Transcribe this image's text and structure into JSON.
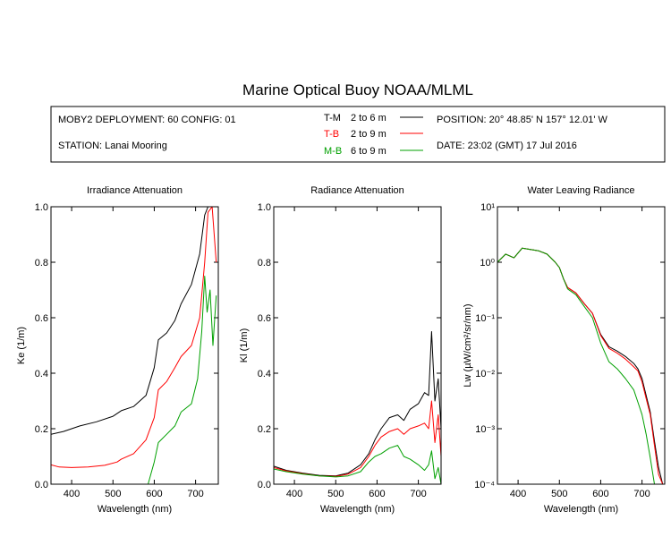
{
  "title": "Marine Optical Buoy NOAA/MLML",
  "info": {
    "deployment": "MOBY2 DEPLOYMENT: 60 CONFIG: 01",
    "station": "STATION: Lanai Mooring",
    "position": "POSITION: 20° 48.85' N   157° 12.01' W",
    "date": "DATE: 23:02 (GMT) 17 Jul 2016"
  },
  "legend": [
    {
      "code": "T-M",
      "range": "2 to 6  m",
      "color": "#000000"
    },
    {
      "code": "T-B",
      "range": "2 to 9  m",
      "color": "#ff0000"
    },
    {
      "code": "M-B",
      "range": "6 to 9  m",
      "color": "#00a000"
    }
  ],
  "chart_data": [
    {
      "type": "line",
      "title": "Irradiance Attenuation",
      "xlabel": "Wavelength (nm)",
      "ylabel": "Ke  (1/m)",
      "xlim": [
        350,
        755
      ],
      "ylim": [
        0,
        1
      ],
      "xticks": [
        "400",
        "500",
        "600",
        "700"
      ],
      "yticks": [
        "0.0",
        "0.2",
        "0.4",
        "0.6",
        "0.8",
        "1.0"
      ],
      "series": [
        {
          "name": "T-M",
          "color": "#000000",
          "points": [
            [
              350,
              0.18
            ],
            [
              380,
              0.19
            ],
            [
              420,
              0.21
            ],
            [
              460,
              0.225
            ],
            [
              500,
              0.245
            ],
            [
              520,
              0.265
            ],
            [
              550,
              0.28
            ],
            [
              580,
              0.32
            ],
            [
              600,
              0.42
            ],
            [
              610,
              0.52
            ],
            [
              630,
              0.545
            ],
            [
              650,
              0.59
            ],
            [
              665,
              0.65
            ],
            [
              690,
              0.72
            ],
            [
              710,
              0.83
            ],
            [
              722,
              0.97
            ],
            [
              730,
              1.0
            ]
          ]
        },
        {
          "name": "T-B",
          "color": "#ff0000",
          "points": [
            [
              350,
              0.07
            ],
            [
              370,
              0.062
            ],
            [
              400,
              0.06
            ],
            [
              440,
              0.062
            ],
            [
              480,
              0.068
            ],
            [
              510,
              0.08
            ],
            [
              520,
              0.09
            ],
            [
              550,
              0.11
            ],
            [
              580,
              0.16
            ],
            [
              600,
              0.24
            ],
            [
              610,
              0.34
            ],
            [
              630,
              0.37
            ],
            [
              650,
              0.42
            ],
            [
              665,
              0.46
            ],
            [
              690,
              0.5
            ],
            [
              710,
              0.6
            ],
            [
              722,
              0.8
            ],
            [
              730,
              0.98
            ],
            [
              740,
              1.0
            ],
            [
              750,
              0.8
            ]
          ]
        },
        {
          "name": "M-B",
          "color": "#00a000",
          "points": [
            [
              585,
              0.0
            ],
            [
              600,
              0.08
            ],
            [
              610,
              0.15
            ],
            [
              630,
              0.18
            ],
            [
              650,
              0.21
            ],
            [
              665,
              0.26
            ],
            [
              690,
              0.29
            ],
            [
              705,
              0.38
            ],
            [
              715,
              0.55
            ],
            [
              722,
              0.75
            ],
            [
              728,
              0.62
            ],
            [
              735,
              0.7
            ],
            [
              742,
              0.5
            ],
            [
              750,
              0.68
            ]
          ]
        }
      ]
    },
    {
      "type": "line",
      "title": "Radiance Attenuation",
      "xlabel": "Wavelength (nm)",
      "ylabel": "Kl  (1/m)",
      "xlim": [
        350,
        755
      ],
      "ylim": [
        0,
        1
      ],
      "xticks": [
        "400",
        "500",
        "600",
        "700"
      ],
      "yticks": [
        "0.0",
        "0.2",
        "0.4",
        "0.6",
        "0.8",
        "1.0"
      ],
      "series": [
        {
          "name": "T-M",
          "color": "#000000",
          "points": [
            [
              350,
              0.065
            ],
            [
              380,
              0.05
            ],
            [
              420,
              0.04
            ],
            [
              460,
              0.032
            ],
            [
              500,
              0.03
            ],
            [
              530,
              0.04
            ],
            [
              560,
              0.07
            ],
            [
              580,
              0.11
            ],
            [
              595,
              0.16
            ],
            [
              610,
              0.2
            ],
            [
              630,
              0.24
            ],
            [
              650,
              0.25
            ],
            [
              665,
              0.23
            ],
            [
              680,
              0.27
            ],
            [
              700,
              0.29
            ],
            [
              715,
              0.33
            ],
            [
              725,
              0.32
            ],
            [
              732,
              0.55
            ],
            [
              740,
              0.3
            ],
            [
              748,
              0.38
            ],
            [
              755,
              0.2
            ]
          ]
        },
        {
          "name": "T-B",
          "color": "#ff0000",
          "points": [
            [
              350,
              0.06
            ],
            [
              380,
              0.048
            ],
            [
              420,
              0.038
            ],
            [
              460,
              0.03
            ],
            [
              500,
              0.028
            ],
            [
              530,
              0.036
            ],
            [
              560,
              0.06
            ],
            [
              580,
              0.1
            ],
            [
              595,
              0.14
            ],
            [
              610,
              0.17
            ],
            [
              630,
              0.19
            ],
            [
              650,
              0.2
            ],
            [
              665,
              0.18
            ],
            [
              680,
              0.2
            ],
            [
              700,
              0.21
            ],
            [
              715,
              0.22
            ],
            [
              725,
              0.2
            ],
            [
              732,
              0.3
            ],
            [
              740,
              0.15
            ],
            [
              748,
              0.25
            ],
            [
              755,
              0.1
            ]
          ]
        },
        {
          "name": "M-B",
          "color": "#00a000",
          "points": [
            [
              350,
              0.055
            ],
            [
              380,
              0.045
            ],
            [
              420,
              0.036
            ],
            [
              460,
              0.03
            ],
            [
              500,
              0.026
            ],
            [
              530,
              0.03
            ],
            [
              560,
              0.045
            ],
            [
              580,
              0.08
            ],
            [
              595,
              0.1
            ],
            [
              610,
              0.11
            ],
            [
              630,
              0.13
            ],
            [
              650,
              0.14
            ],
            [
              665,
              0.1
            ],
            [
              680,
              0.09
            ],
            [
              700,
              0.07
            ],
            [
              715,
              0.05
            ],
            [
              725,
              0.07
            ],
            [
              732,
              0.12
            ],
            [
              740,
              0.02
            ],
            [
              748,
              0.06
            ],
            [
              755,
              0.0
            ]
          ]
        }
      ]
    },
    {
      "type": "line",
      "title": "Water Leaving Radiance",
      "xlabel": "Wavelength (nm)",
      "ylabel": "Lw  (µW/cm²/sr/nm)",
      "yscale": "log",
      "xlim": [
        350,
        755
      ],
      "ylim": [
        0.0001,
        10
      ],
      "xticks": [
        "400",
        "500",
        "600",
        "700"
      ],
      "yticks": [
        "10⁻⁴",
        "10⁻³",
        "10⁻²",
        "10⁻¹",
        "10⁰",
        "10¹"
      ],
      "series": [
        {
          "name": "T-M",
          "color": "#000000",
          "points": [
            [
              350,
              1.0
            ],
            [
              370,
              1.4
            ],
            [
              390,
              1.2
            ],
            [
              410,
              1.8
            ],
            [
              430,
              1.7
            ],
            [
              450,
              1.6
            ],
            [
              470,
              1.4
            ],
            [
              490,
              1.0
            ],
            [
              500,
              0.8
            ],
            [
              510,
              0.5
            ],
            [
              520,
              0.35
            ],
            [
              540,
              0.28
            ],
            [
              560,
              0.18
            ],
            [
              580,
              0.12
            ],
            [
              600,
              0.05
            ],
            [
              620,
              0.03
            ],
            [
              640,
              0.025
            ],
            [
              660,
              0.02
            ],
            [
              680,
              0.015
            ],
            [
              690,
              0.012
            ],
            [
              700,
              0.008
            ],
            [
              710,
              0.004
            ],
            [
              720,
              0.002
            ],
            [
              730,
              0.0006
            ],
            [
              740,
              0.0002
            ],
            [
              750,
              0.0001
            ]
          ]
        },
        {
          "name": "T-B",
          "color": "#ff0000",
          "points": [
            [
              350,
              1.0
            ],
            [
              370,
              1.4
            ],
            [
              390,
              1.2
            ],
            [
              410,
              1.8
            ],
            [
              430,
              1.7
            ],
            [
              450,
              1.6
            ],
            [
              470,
              1.4
            ],
            [
              490,
              1.0
            ],
            [
              500,
              0.8
            ],
            [
              510,
              0.5
            ],
            [
              520,
              0.35
            ],
            [
              540,
              0.28
            ],
            [
              560,
              0.18
            ],
            [
              580,
              0.12
            ],
            [
              600,
              0.048
            ],
            [
              620,
              0.028
            ],
            [
              640,
              0.023
            ],
            [
              660,
              0.018
            ],
            [
              680,
              0.013
            ],
            [
              690,
              0.011
            ],
            [
              700,
              0.007
            ],
            [
              710,
              0.0035
            ],
            [
              720,
              0.0018
            ],
            [
              730,
              0.0005
            ],
            [
              740,
              0.00015
            ],
            [
              750,
              0.0001
            ]
          ]
        },
        {
          "name": "M-B",
          "color": "#00a000",
          "points": [
            [
              350,
              1.0
            ],
            [
              370,
              1.4
            ],
            [
              390,
              1.2
            ],
            [
              410,
              1.8
            ],
            [
              430,
              1.7
            ],
            [
              450,
              1.6
            ],
            [
              470,
              1.4
            ],
            [
              490,
              1.0
            ],
            [
              500,
              0.8
            ],
            [
              510,
              0.5
            ],
            [
              520,
              0.33
            ],
            [
              540,
              0.26
            ],
            [
              560,
              0.16
            ],
            [
              580,
              0.1
            ],
            [
              600,
              0.035
            ],
            [
              620,
              0.016
            ],
            [
              640,
              0.012
            ],
            [
              660,
              0.008
            ],
            [
              680,
              0.005
            ],
            [
              690,
              0.003
            ],
            [
              700,
              0.0018
            ],
            [
              710,
              0.0008
            ],
            [
              720,
              0.0003
            ],
            [
              730,
              0.0001
            ]
          ]
        }
      ]
    }
  ]
}
